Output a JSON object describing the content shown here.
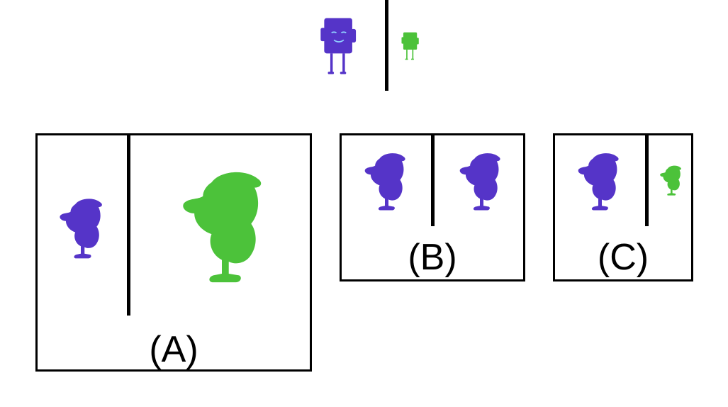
{
  "colors": {
    "purple": "#5534c8",
    "purple_dark": "#3a1fa8",
    "green": "#4cc23a",
    "green_dark": "#2f9a27",
    "line": "#000000"
  },
  "example": {
    "left_figure": "purple-square-creature",
    "right_figure": "green-square-creature"
  },
  "options": [
    {
      "label": "(A)",
      "left_figure": "purple-bird",
      "right_figure": "green-bird-large"
    },
    {
      "label": "(B)",
      "left_figure": "purple-bird",
      "right_figure": "purple-bird"
    },
    {
      "label": "(C)",
      "left_figure": "purple-bird",
      "right_figure": "green-bird-small"
    }
  ]
}
